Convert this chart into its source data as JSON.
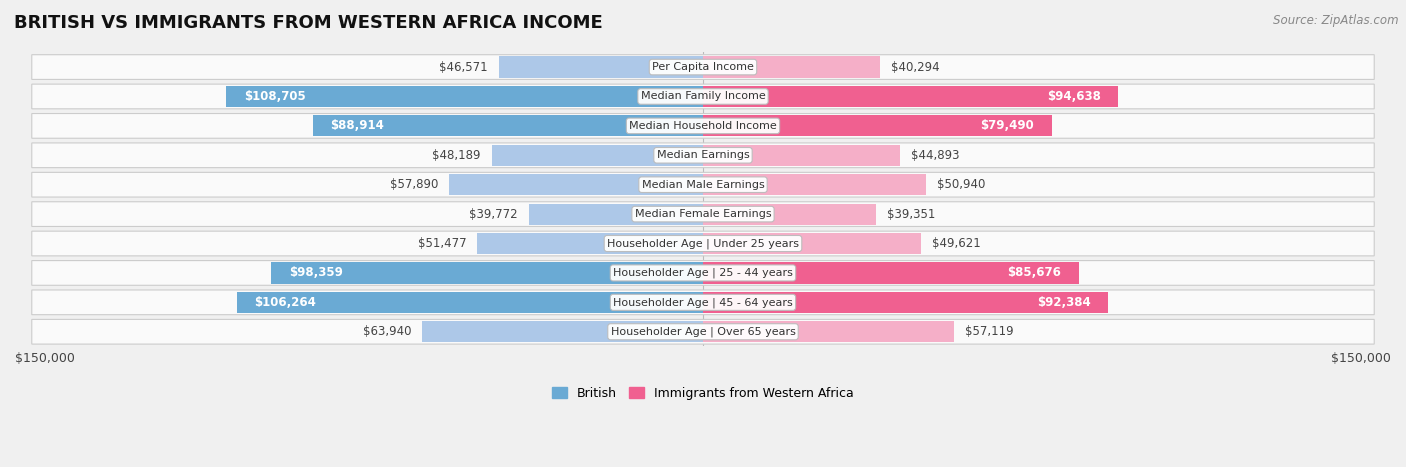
{
  "title": "BRITISH VS IMMIGRANTS FROM WESTERN AFRICA INCOME",
  "source": "Source: ZipAtlas.com",
  "categories": [
    "Per Capita Income",
    "Median Family Income",
    "Median Household Income",
    "Median Earnings",
    "Median Male Earnings",
    "Median Female Earnings",
    "Householder Age | Under 25 years",
    "Householder Age | 25 - 44 years",
    "Householder Age | 45 - 64 years",
    "Householder Age | Over 65 years"
  ],
  "british_values": [
    46571,
    108705,
    88914,
    48189,
    57890,
    39772,
    51477,
    98359,
    106264,
    63940
  ],
  "immigrant_values": [
    40294,
    94638,
    79490,
    44893,
    50940,
    39351,
    49621,
    85676,
    92384,
    57119
  ],
  "british_labels": [
    "$46,571",
    "$108,705",
    "$88,914",
    "$48,189",
    "$57,890",
    "$39,772",
    "$51,477",
    "$98,359",
    "$106,264",
    "$63,940"
  ],
  "immigrant_labels": [
    "$40,294",
    "$94,638",
    "$79,490",
    "$44,893",
    "$50,940",
    "$39,351",
    "$49,621",
    "$85,676",
    "$92,384",
    "$57,119"
  ],
  "british_color_light": "#adc8e8",
  "british_color_dark": "#6aaad4",
  "immigrant_color_light": "#f5afc8",
  "immigrant_color_dark": "#f06090",
  "british_dark_threshold": 70000,
  "immigrant_dark_threshold": 70000,
  "max_value": 150000,
  "bar_height": 0.72,
  "row_bg_color": "#f0f0f0",
  "row_fill_color": "#ffffff",
  "title_fontsize": 13,
  "label_fontsize": 8.5,
  "category_fontsize": 8.0,
  "axis_label_fontsize": 9,
  "legend_fontsize": 9,
  "source_fontsize": 8.5
}
